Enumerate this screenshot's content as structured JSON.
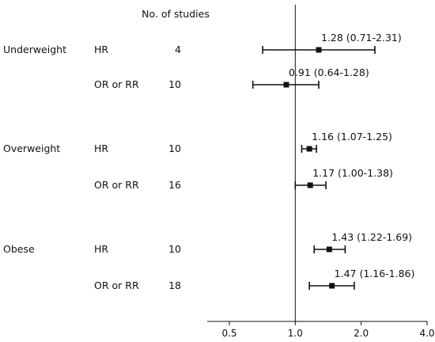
{
  "header": {
    "studies_label": "No. of studies"
  },
  "chart_data": {
    "type": "forest",
    "xscale": "log",
    "xlim": [
      0.5,
      4.0
    ],
    "xticks": [
      "0.5",
      "1.0",
      "2.0",
      "4.0"
    ],
    "reference_line": 1.0,
    "groups": [
      {
        "category": "Underweight",
        "rows": [
          {
            "measure": "HR",
            "studies": "4",
            "estimate": 1.28,
            "lower": 0.71,
            "upper": 2.31,
            "label": "1.28 (0.71-2.31)"
          },
          {
            "measure": "OR or RR",
            "studies": "10",
            "estimate": 0.91,
            "lower": 0.64,
            "upper": 1.28,
            "label": "0.91 (0.64-1.28)"
          }
        ]
      },
      {
        "category": "Overweight",
        "rows": [
          {
            "measure": "HR",
            "studies": "10",
            "estimate": 1.16,
            "lower": 1.07,
            "upper": 1.25,
            "label": "1.16 (1.07-1.25)"
          },
          {
            "measure": "OR or RR",
            "studies": "16",
            "estimate": 1.17,
            "lower": 1.0,
            "upper": 1.38,
            "label": "1.17 (1.00-1.38)"
          }
        ]
      },
      {
        "category": "Obese",
        "rows": [
          {
            "measure": "HR",
            "studies": "10",
            "estimate": 1.43,
            "lower": 1.22,
            "upper": 1.69,
            "label": "1.43 (1.22-1.69)"
          },
          {
            "measure": "OR or RR",
            "studies": "18",
            "estimate": 1.47,
            "lower": 1.16,
            "upper": 1.86,
            "label": "1.47 (1.16-1.86)"
          }
        ]
      }
    ]
  }
}
